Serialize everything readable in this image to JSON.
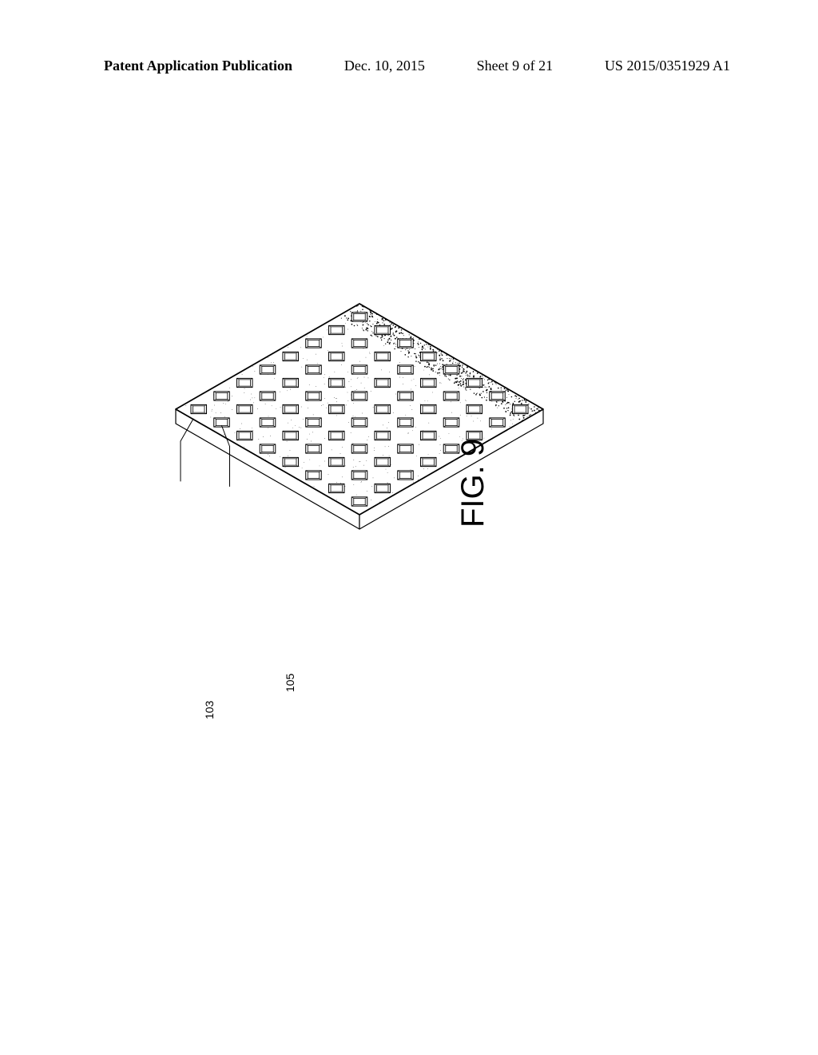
{
  "header": {
    "pub_type": "Patent Application Publication",
    "date": "Dec. 10, 2015",
    "sheet": "Sheet 9 of 21",
    "pub_number": "US 2015/0351929 A1"
  },
  "figure": {
    "label": "FIG. 9",
    "ref_103": "103",
    "ref_105": "105",
    "grid_size": 8,
    "colors": {
      "stroke": "#000000",
      "background": "#ffffff",
      "stipple": "#000000"
    },
    "stroke_width": 1.2,
    "slab_thickness": 18
  }
}
